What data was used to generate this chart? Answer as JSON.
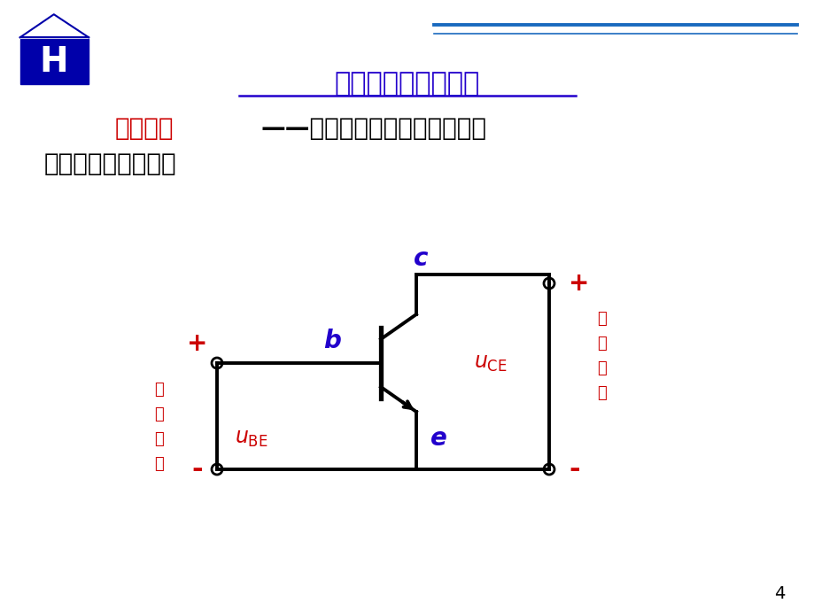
{
  "bg_color": "#ffffff",
  "title": "晶体管组成放大电路",
  "title_color": "#0000cc",
  "title_fontsize": 22,
  "subtitle_red": "放大作用",
  "subtitle_black": "——将微弱电信号增强到人们所",
  "subtitle2": "需要的较强的数值。",
  "subtitle_fontsize": 20,
  "header_line_color": "#1a6abf",
  "page_number": "4",
  "blue": "#2200cc",
  "red": "#cc0000",
  "black": "#000000"
}
